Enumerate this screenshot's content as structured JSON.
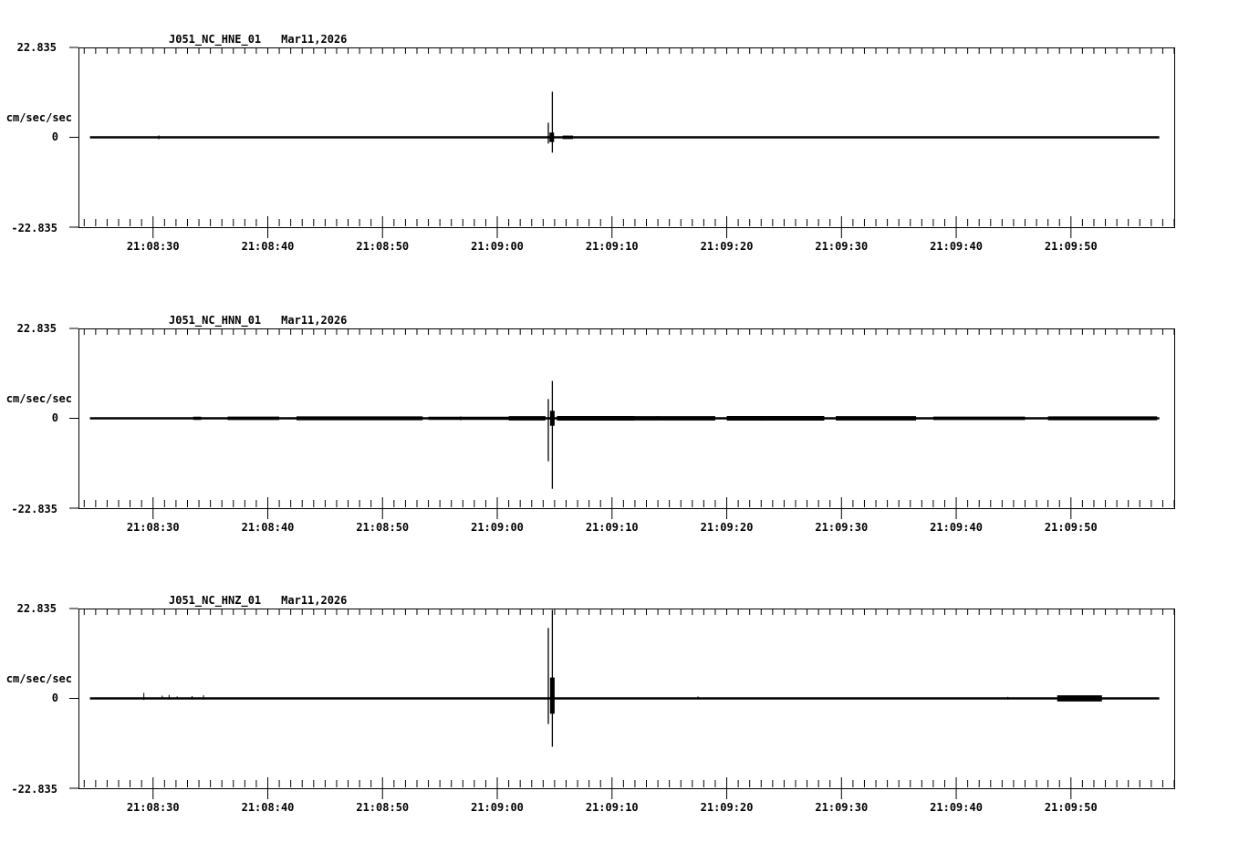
{
  "figure": {
    "background": "#ffffff",
    "foreground": "#000000",
    "description": "Three-channel strong-motion seismogram (acceleration) for station J051, NC network, components HNE/HNN/HNZ, location 01, recorded Mar 11, 2026, time window ~21:08:24 to ~21:09:59, with an impulsive arrival near 21:09:05",
    "grid": false,
    "legend": false
  },
  "chart_data": [
    {
      "type": "line",
      "title": {
        "station": "J051_NC_HNE_01",
        "date": "Mar11,2026"
      },
      "ylabel": "cm/sec/sec",
      "ylim": [
        -22.835,
        22.835
      ],
      "yticks": [
        {
          "value": 22.835,
          "label": "22.835"
        },
        {
          "value": 0,
          "label": "0"
        },
        {
          "value": -22.835,
          "label": "-22.835"
        }
      ],
      "x_start_s": 503.5,
      "x_end_s": 599.0,
      "x_start_label": "21:08:23.5",
      "x_end_label": "21:09:59",
      "minor_tick_s": 1,
      "xticks": [
        {
          "s": 510,
          "label": "21:08:30"
        },
        {
          "s": 520,
          "label": "21:08:40"
        },
        {
          "s": 530,
          "label": "21:08:50"
        },
        {
          "s": 540,
          "label": "21:09:00"
        },
        {
          "s": 550,
          "label": "21:09:10"
        },
        {
          "s": 560,
          "label": "21:09:20"
        },
        {
          "s": 570,
          "label": "21:09:30"
        },
        {
          "s": 580,
          "label": "21:09:40"
        },
        {
          "s": 590,
          "label": "21:09:50"
        }
      ],
      "event_time": "21:09:05",
      "trace": {
        "baseline": 0,
        "start_s": 504.5,
        "end_s": 597.7,
        "spikes": [
          {
            "s": 544.45,
            "up": 3.7,
            "down": 1.6
          },
          {
            "s": 544.8,
            "up": 11.6,
            "down": 3.9
          }
        ],
        "burst": {
          "s1": 544.55,
          "s2": 544.95,
          "up": 1.2,
          "down": 1.2
        },
        "noise": [
          {
            "s": 510.5,
            "up": 0.5,
            "down": 0.5
          }
        ],
        "fuzz": [
          {
            "s1": 545.7,
            "s2": 546.6,
            "amp": 0.15
          }
        ]
      }
    },
    {
      "type": "line",
      "title": {
        "station": "J051_NC_HNN_01",
        "date": "Mar11,2026"
      },
      "ylabel": "cm/sec/sec",
      "ylim": [
        -22.835,
        22.835
      ],
      "yticks": [
        {
          "value": 22.835,
          "label": "22.835"
        },
        {
          "value": 0,
          "label": "0"
        },
        {
          "value": -22.835,
          "label": "-22.835"
        }
      ],
      "x_start_s": 503.5,
      "x_end_s": 599.0,
      "x_start_label": "21:08:23.5",
      "x_end_label": "21:09:59",
      "minor_tick_s": 1,
      "xticks": [
        {
          "s": 510,
          "label": "21:08:30"
        },
        {
          "s": 520,
          "label": "21:08:40"
        },
        {
          "s": 530,
          "label": "21:08:50"
        },
        {
          "s": 540,
          "label": "21:09:00"
        },
        {
          "s": 550,
          "label": "21:09:10"
        },
        {
          "s": 560,
          "label": "21:09:20"
        },
        {
          "s": 570,
          "label": "21:09:30"
        },
        {
          "s": 580,
          "label": "21:09:40"
        },
        {
          "s": 590,
          "label": "21:09:50"
        }
      ],
      "event_time": "21:09:05",
      "trace": {
        "baseline": 0,
        "start_s": 504.5,
        "end_s": 597.7,
        "spikes": [
          {
            "s": 544.45,
            "up": 4.9,
            "down": 10.9
          },
          {
            "s": 544.8,
            "up": 9.5,
            "down": 17.9
          }
        ],
        "burst": {
          "s1": 544.6,
          "s2": 545.0,
          "up": 1.9,
          "down": 1.9
        },
        "noise": [
          {
            "s": 536.8,
            "up": 0.5,
            "down": 0.5
          },
          {
            "s": 554.0,
            "up": 0.6,
            "down": 0.3
          },
          {
            "s": 563.0,
            "up": 0.4,
            "down": 0.6
          }
        ],
        "fuzz": [
          {
            "s1": 513.5,
            "s2": 514.2,
            "amp": 0.12
          },
          {
            "s1": 516.5,
            "s2": 521.0,
            "amp": 0.15
          },
          {
            "s1": 522.5,
            "s2": 533.5,
            "amp": 0.2
          },
          {
            "s1": 534.0,
            "s2": 541.0,
            "amp": 0.12
          },
          {
            "s1": 541.0,
            "s2": 544.2,
            "amp": 0.25
          },
          {
            "s1": 545.2,
            "s2": 552.0,
            "amp": 0.3
          },
          {
            "s1": 552.0,
            "s2": 559.0,
            "amp": 0.25
          },
          {
            "s1": 560.0,
            "s2": 568.5,
            "amp": 0.3
          },
          {
            "s1": 569.5,
            "s2": 576.5,
            "amp": 0.25
          },
          {
            "s1": 578.0,
            "s2": 586.0,
            "amp": 0.15
          },
          {
            "s1": 588.0,
            "s2": 597.5,
            "amp": 0.2
          }
        ]
      }
    },
    {
      "type": "line",
      "title": {
        "station": "J051_NC_HNZ_01",
        "date": "Mar11,2026"
      },
      "ylabel": "cm/sec/sec",
      "ylim": [
        -22.835,
        22.835
      ],
      "yticks": [
        {
          "value": 22.835,
          "label": "22.835"
        },
        {
          "value": 0,
          "label": "0"
        },
        {
          "value": -22.835,
          "label": "-22.835"
        }
      ],
      "x_start_s": 503.5,
      "x_end_s": 599.0,
      "x_start_label": "21:08:23.5",
      "x_end_label": "21:09:59",
      "minor_tick_s": 1,
      "xticks": [
        {
          "s": 510,
          "label": "21:08:30"
        },
        {
          "s": 520,
          "label": "21:08:40"
        },
        {
          "s": 530,
          "label": "21:08:50"
        },
        {
          "s": 540,
          "label": "21:09:00"
        },
        {
          "s": 550,
          "label": "21:09:10"
        },
        {
          "s": 560,
          "label": "21:09:20"
        },
        {
          "s": 570,
          "label": "21:09:30"
        },
        {
          "s": 580,
          "label": "21:09:40"
        },
        {
          "s": 590,
          "label": "21:09:50"
        }
      ],
      "event_time": "21:09:05",
      "trace": {
        "baseline": 0,
        "start_s": 504.5,
        "end_s": 597.7,
        "spikes": [
          {
            "s": 544.45,
            "up": 17.9,
            "down": 6.5
          },
          {
            "s": 544.8,
            "up": 22.5,
            "down": 12.3
          }
        ],
        "burst": {
          "s1": 544.6,
          "s2": 545.0,
          "up": 5.3,
          "down": 3.9
        },
        "noise": [
          {
            "s": 509.2,
            "up": 1.4,
            "down": 0.4
          },
          {
            "s": 510.8,
            "up": 0.7,
            "down": 0.2
          },
          {
            "s": 511.4,
            "up": 0.9,
            "down": 0.3
          },
          {
            "s": 512.1,
            "up": 0.5,
            "down": 0.2
          },
          {
            "s": 513.4,
            "up": 0.6,
            "down": 0.3
          },
          {
            "s": 514.4,
            "up": 0.8,
            "down": 0.3
          },
          {
            "s": 557.5,
            "up": 0.5,
            "down": 0.3
          },
          {
            "s": 584.5,
            "up": 0.4,
            "down": 0.3
          }
        ],
        "fuzz": [
          {
            "s1": 588.8,
            "s2": 592.7,
            "amp": 0.5
          }
        ]
      }
    }
  ]
}
